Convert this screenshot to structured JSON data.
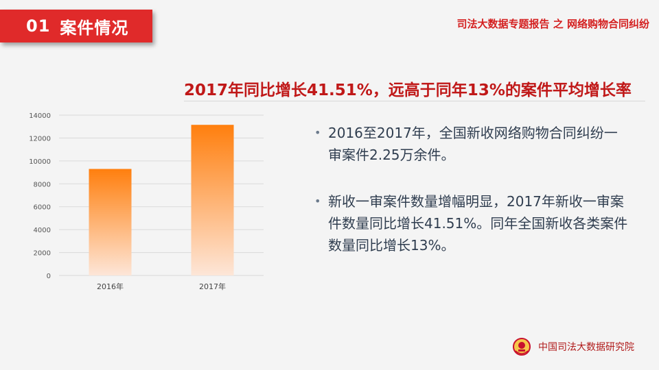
{
  "section": {
    "number": "01",
    "title": "案件情况"
  },
  "header_subtitle": "司法大数据专题报告 之 网络购物合同纠纷",
  "headline": "2017年同比增长41.51%，远高于同年13%的案件平均增长率",
  "bullets": [
    "2016至2017年，全国新收网络购物合同纠纷一审案件2.25万余件。",
    "新收一审案件数量增幅明显，2017年新收一审案件数量同比增长41.51%。同年全国新收各类案件数量同比增长13%。"
  ],
  "footer": {
    "org_name": "中国司法大数据研究院"
  },
  "colors": {
    "accent_red": "#e02a2a",
    "headline_red": "#c01818",
    "bar_top": "#ff7f0e",
    "bar_bottom": "#fde6d8",
    "bullet_text": "#2f3d4f"
  },
  "chart_data": {
    "type": "bar",
    "categories": [
      "2016年",
      "2017年"
    ],
    "values": [
      9300,
      13150
    ],
    "ylim": [
      0,
      14000
    ],
    "yticks": [
      0,
      2000,
      4000,
      6000,
      8000,
      10000,
      12000,
      14000
    ],
    "grid": true,
    "title": "",
    "xlabel": "",
    "ylabel": ""
  }
}
